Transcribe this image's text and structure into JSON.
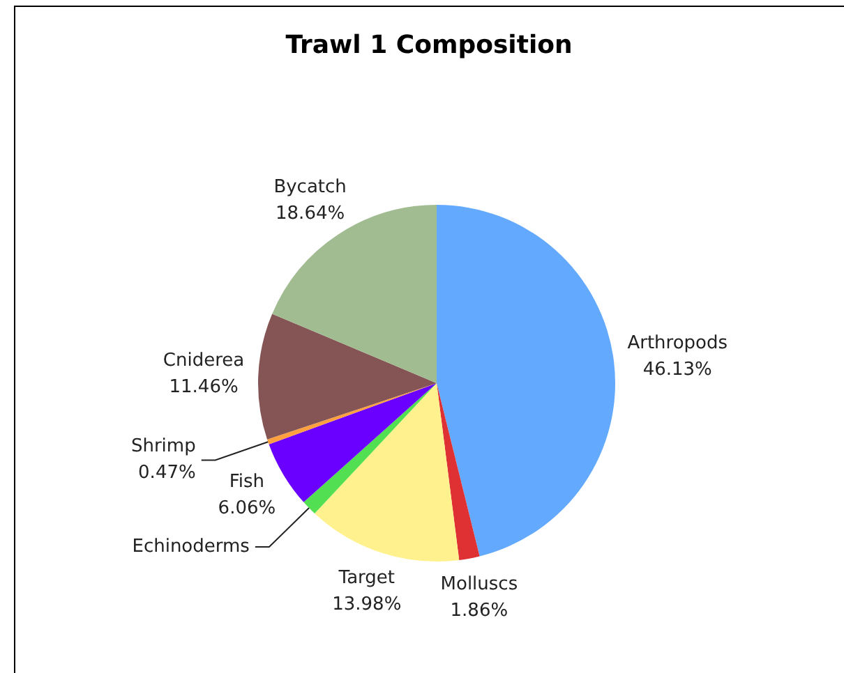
{
  "chart_data": {
    "type": "pie",
    "title": "Trawl 1 Composition",
    "categories": [
      "Arthropods",
      "Molluscs",
      "Target",
      "Echinoderms",
      "Fish",
      "Shrimp",
      "Cniderea",
      "Bycatch"
    ],
    "values": [
      46.13,
      1.86,
      13.98,
      1.4,
      6.06,
      0.47,
      11.46,
      18.64
    ],
    "colors": [
      "#63aaff",
      "#df3034",
      "#fff28e",
      "#52e052",
      "#6a00ff",
      "#ffa040",
      "#855555",
      "#a0bc90"
    ],
    "value_labels": [
      "46.13%",
      "1.86%",
      "13.98%",
      null,
      "6.06%",
      "0.47%",
      "11.46%",
      "18.64%"
    ]
  }
}
